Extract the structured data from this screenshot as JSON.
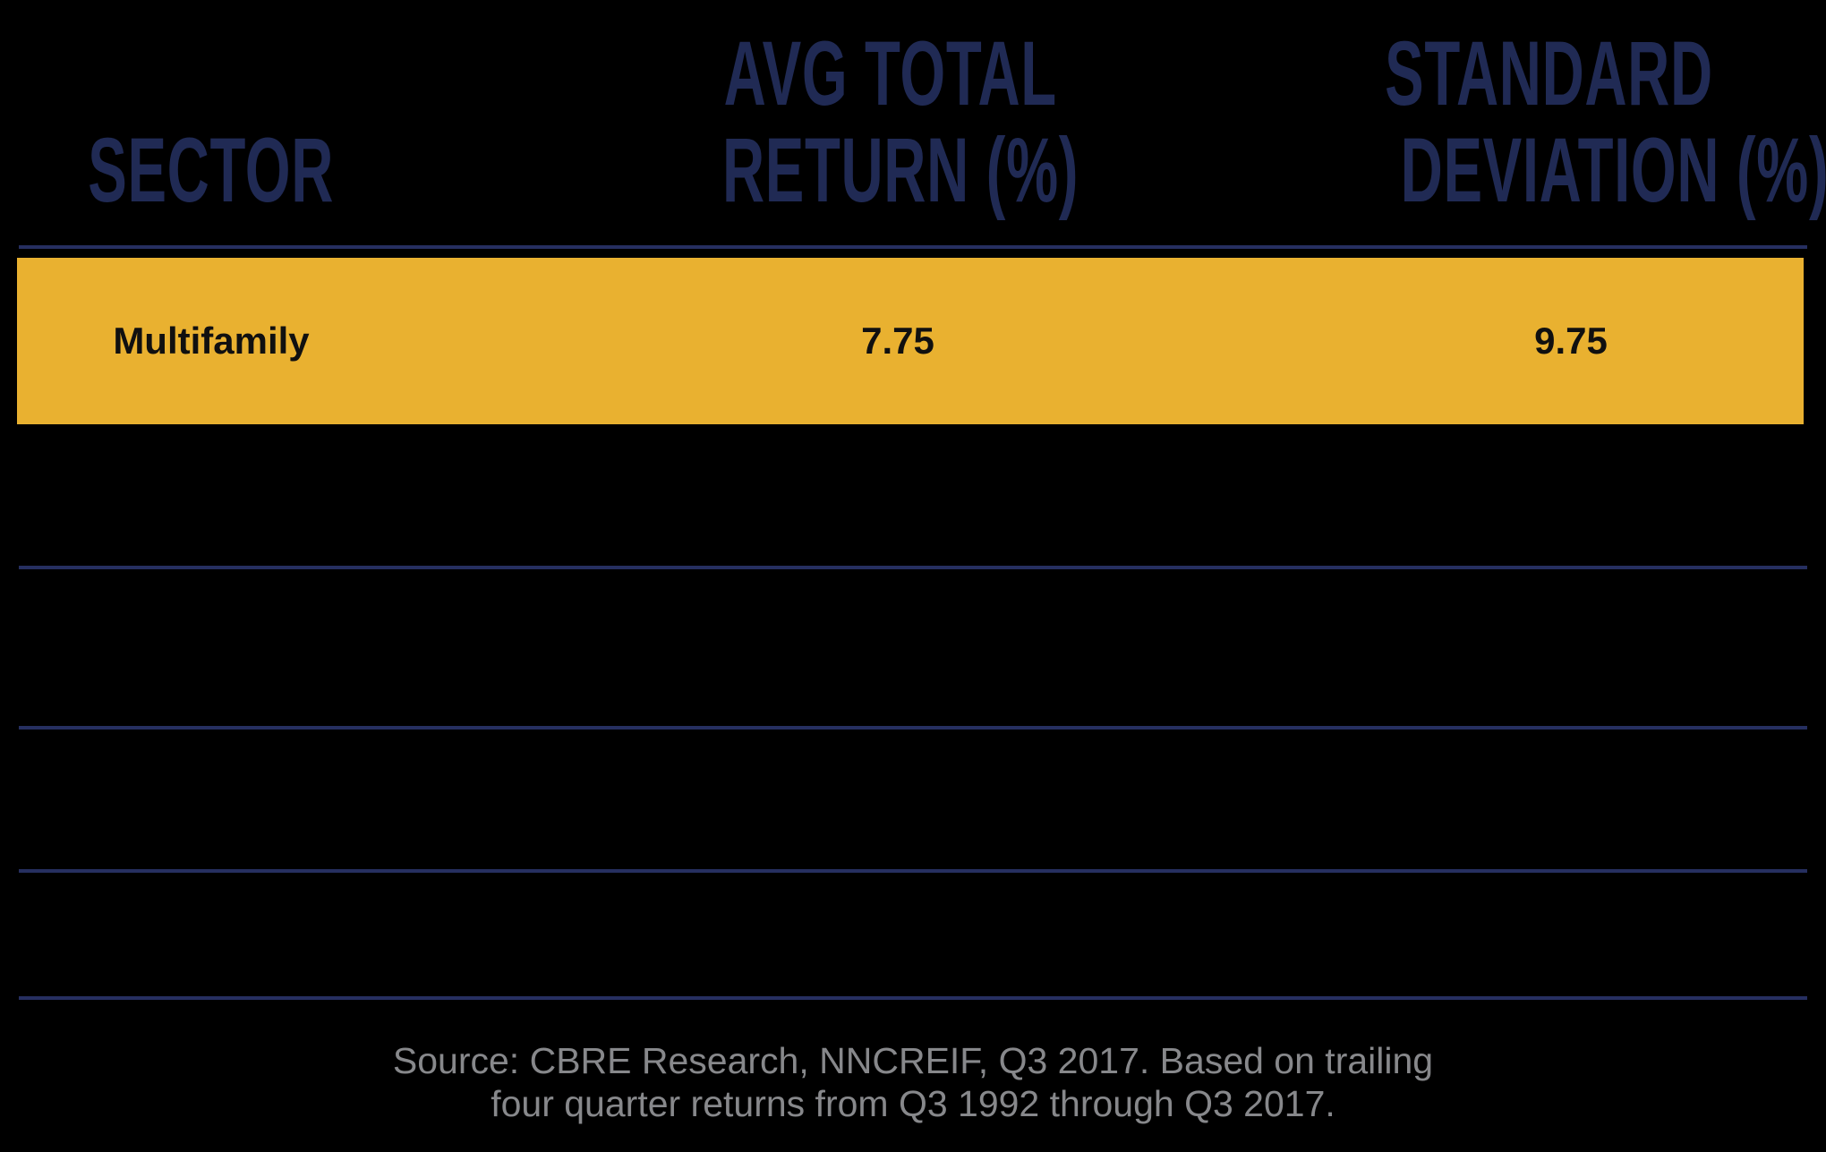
{
  "colors": {
    "background": "#000000",
    "header_navy": "#202A54",
    "rule_navy": "#262F60",
    "highlight_yellow": "#E9B130",
    "highlight_text": "#101010",
    "source_gray": "#87888B"
  },
  "table": {
    "columns": [
      {
        "id": "sector",
        "header_lines": [
          "SECTOR"
        ]
      },
      {
        "id": "avg_total_return",
        "header_lines": [
          "AVG TOTAL",
          "RETURN (%)"
        ]
      },
      {
        "id": "standard_deviation",
        "header_lines": [
          "STANDARD",
          "DEVIATION (%)"
        ]
      }
    ],
    "highlight_row": {
      "sector": "Multifamily",
      "avg_total_return": "7.75",
      "standard_deviation": "9.75"
    },
    "empty_row_count": 4
  },
  "source_note": {
    "line1": "Source: CBRE Research, NNCREIF, Q3 2017. Based on trailing",
    "line2": "four quarter returns from Q3 1992 through Q3 2017."
  },
  "chart_data": {
    "type": "table",
    "columns": [
      "SECTOR",
      "AVG TOTAL RETURN (%)",
      "STANDARD DEVIATION (%)"
    ],
    "rows": [
      [
        "Multifamily",
        7.75,
        9.75
      ]
    ],
    "highlight_row": "Multifamily",
    "highlight_color": "#E9B130",
    "empty_rows_shown": 4,
    "notes": "Source: CBRE Research, NNCREIF, Q3 2017. Based on trailing four quarter returns from Q3 1992 through Q3 2017."
  }
}
